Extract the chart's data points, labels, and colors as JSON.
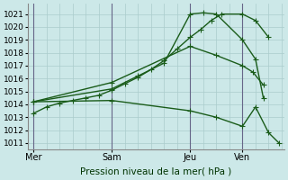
{
  "title": "",
  "xlabel": "Pression niveau de la mer( hPa )",
  "ylabel": "",
  "bg_color": "#cce8e8",
  "grid_color": "#aacccc",
  "line_color": "#1a5c1a",
  "vline_color": "#666688",
  "ylim": [
    1010.5,
    1021.8
  ],
  "yticks": [
    1011,
    1012,
    1013,
    1014,
    1015,
    1016,
    1017,
    1018,
    1019,
    1020,
    1021
  ],
  "xtick_labels": [
    "Mer",
    "Sam",
    "Jeu",
    "Ven"
  ],
  "xtick_positions": [
    0,
    30,
    60,
    80
  ],
  "vlines": [
    0,
    30,
    60,
    80
  ],
  "xlim": [
    -2,
    96
  ],
  "line1_x": [
    0,
    5,
    10,
    15,
    20,
    25,
    30,
    35,
    40,
    45,
    50,
    55,
    60,
    64,
    68,
    72,
    80,
    85,
    90
  ],
  "line1_y": [
    1013.3,
    1013.8,
    1014.1,
    1014.3,
    1014.5,
    1014.7,
    1015.1,
    1015.6,
    1016.1,
    1016.7,
    1017.4,
    1018.3,
    1019.2,
    1019.8,
    1020.5,
    1021.0,
    1021.0,
    1020.5,
    1019.2
  ],
  "line2_x": [
    0,
    30,
    40,
    50,
    60,
    65,
    70,
    80,
    85,
    88
  ],
  "line2_y": [
    1014.2,
    1015.2,
    1016.2,
    1017.2,
    1021.0,
    1021.1,
    1021.0,
    1019.0,
    1017.5,
    1014.5
  ],
  "line3_x": [
    0,
    30,
    60,
    70,
    80,
    84,
    88
  ],
  "line3_y": [
    1014.2,
    1015.7,
    1018.5,
    1017.8,
    1017.0,
    1016.5,
    1015.5
  ],
  "line4_x": [
    0,
    30,
    60,
    70,
    80,
    85,
    90,
    94
  ],
  "line4_y": [
    1014.2,
    1014.3,
    1013.5,
    1013.0,
    1012.3,
    1013.8,
    1011.8,
    1011.0
  ],
  "marker_size": 2.5,
  "linewidth": 1.0
}
